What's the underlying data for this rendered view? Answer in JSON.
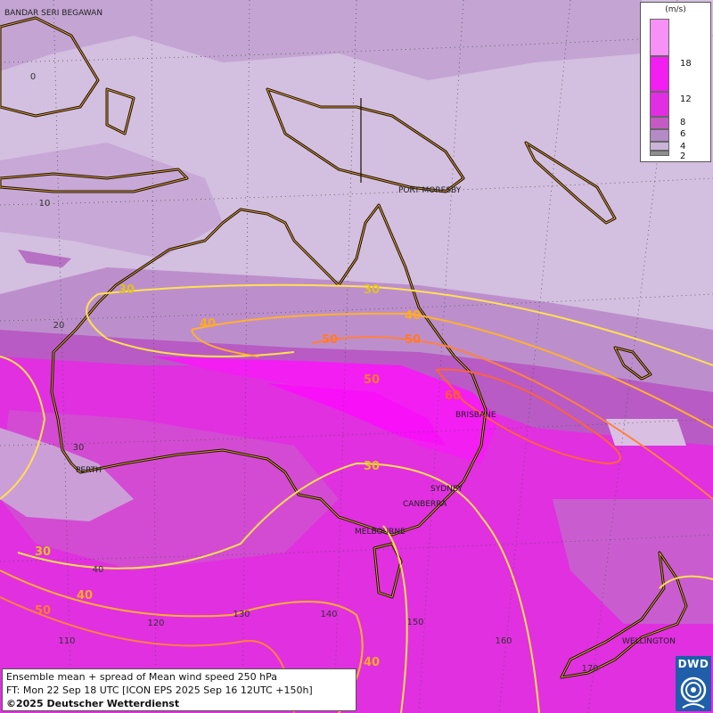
{
  "legend": {
    "unit": "(m/s)",
    "swatches": [
      {
        "label": "",
        "color": "#f790f7"
      },
      {
        "label": "18",
        "color": "#f21ef2"
      },
      {
        "label": "12",
        "color": "#e22ee2"
      },
      {
        "label": "8",
        "color": "#c45ac4"
      },
      {
        "label": "6",
        "color": "#b58bc6"
      },
      {
        "label": "4",
        "color": "#cbb4d8"
      },
      {
        "label": "2",
        "color": "#8e8e8e"
      }
    ]
  },
  "cities": {
    "bandar": "BANDAR SERI BEGAWAN",
    "port_moresby": "PORT MORESBY",
    "perth": "PERTH",
    "brisbane": "BRISBANE",
    "sydney": "SYDNEY",
    "canberra": "CANBERRA",
    "melbourne": "MELBOURNE",
    "wellington": "WELLINGTON"
  },
  "grid_labels": {
    "lat_0": "0",
    "lat_10": "10",
    "lat_20": "20",
    "lat_30": "30",
    "lat_40": "40",
    "lon_110": "110",
    "lon_120": "120",
    "lon_130": "130",
    "lon_140": "140",
    "lon_150": "150",
    "lon_160": "160",
    "lon_170": "170"
  },
  "contours": {
    "c30_a": "30",
    "c30_b": "30",
    "c30_c": "30",
    "c30_d": "30",
    "c40_a": "40",
    "c40_b": "40",
    "c40_c": "40",
    "c40_d": "40",
    "c50_a": "50",
    "c50_b": "50",
    "c50_c": "50",
    "c50_d": "50",
    "c60": "60"
  },
  "info": {
    "line1": "Ensemble mean + spread of Mean wind speed 250 hPa",
    "line2": "FT: Mon 22 Sep 18 UTC [ICON EPS 2025 Sep 16 12UTC +150h]",
    "line3": "©2025 Deutscher Wetterdienst"
  },
  "logo": {
    "text": "DWD"
  }
}
